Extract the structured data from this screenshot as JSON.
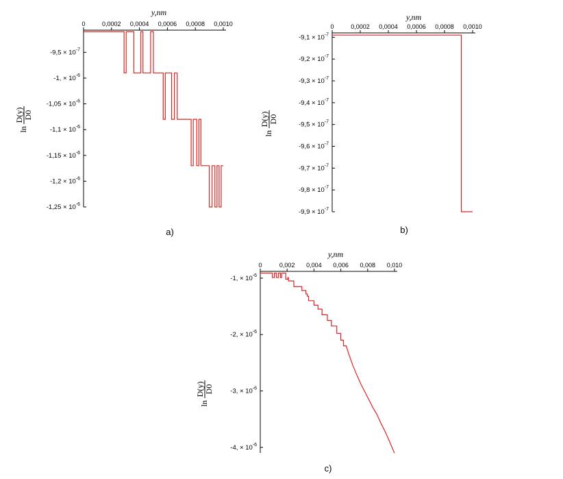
{
  "chart_data": [
    {
      "type": "line",
      "panel_label": "a)",
      "xlabel": "y,nm",
      "ylabel": {
        "prefix": "ln",
        "numerator": "D(y)",
        "denominator": "D0"
      },
      "xlim": [
        0,
        0.001
      ],
      "ylim": [
        -1.25e-06,
        -9.07e-07
      ],
      "x_ticks": [
        {
          "value": 0,
          "label": "0"
        },
        {
          "value": 0.0002,
          "label": "0,0002"
        },
        {
          "value": 0.0004,
          "label": "0,0004"
        },
        {
          "value": 0.0006,
          "label": "0,0006"
        },
        {
          "value": 0.0008,
          "label": "0,0008"
        },
        {
          "value": 0.001,
          "label": "0,0010"
        }
      ],
      "y_ticks": [
        {
          "value": -9.5e-07,
          "mant": "-9,5",
          "exp": "-7"
        },
        {
          "value": -1e-06,
          "mant": "-1,",
          "exp": "-6"
        },
        {
          "value": -1.05e-06,
          "mant": "-1,05",
          "exp": "-6"
        },
        {
          "value": -1.1e-06,
          "mant": "-1,1",
          "exp": "-6"
        },
        {
          "value": -1.15e-06,
          "mant": "-1,15",
          "exp": "-6"
        },
        {
          "value": -1.2e-06,
          "mant": "-1,2",
          "exp": "-6"
        },
        {
          "value": -1.25e-06,
          "mant": "-1,25",
          "exp": "-6"
        }
      ],
      "series": [
        {
          "color": "#dd2222",
          "points": [
            [
              0,
              -9.1e-07
            ],
            [
              0.00029,
              -9.1e-07
            ],
            [
              0.00029,
              -9.9e-07
            ],
            [
              0.000305,
              -9.9e-07
            ],
            [
              0.000305,
              -9.1e-07
            ],
            [
              0.00036,
              -9.1e-07
            ],
            [
              0.00036,
              -9.9e-07
            ],
            [
              0.00041,
              -9.9e-07
            ],
            [
              0.00041,
              -9.1e-07
            ],
            [
              0.000425,
              -9.1e-07
            ],
            [
              0.000425,
              -9.9e-07
            ],
            [
              0.00048,
              -9.9e-07
            ],
            [
              0.00048,
              -9.1e-07
            ],
            [
              0.0005,
              -9.1e-07
            ],
            [
              0.0005,
              -9.9e-07
            ],
            [
              0.00057,
              -9.9e-07
            ],
            [
              0.00057,
              -1.08e-06
            ],
            [
              0.000585,
              -1.08e-06
            ],
            [
              0.000585,
              -9.9e-07
            ],
            [
              0.00063,
              -9.9e-07
            ],
            [
              0.00063,
              -1.08e-06
            ],
            [
              0.00065,
              -1.08e-06
            ],
            [
              0.00065,
              -9.9e-07
            ],
            [
              0.00067,
              -9.9e-07
            ],
            [
              0.00067,
              -1.08e-06
            ],
            [
              0.00077,
              -1.08e-06
            ],
            [
              0.00077,
              -1.17e-06
            ],
            [
              0.000785,
              -1.17e-06
            ],
            [
              0.000785,
              -1.08e-06
            ],
            [
              0.00081,
              -1.08e-06
            ],
            [
              0.00081,
              -1.17e-06
            ],
            [
              0.000825,
              -1.17e-06
            ],
            [
              0.000825,
              -1.08e-06
            ],
            [
              0.00084,
              -1.08e-06
            ],
            [
              0.00084,
              -1.17e-06
            ],
            [
              0.0009,
              -1.17e-06
            ],
            [
              0.0009,
              -1.25e-06
            ],
            [
              0.00092,
              -1.25e-06
            ],
            [
              0.00092,
              -1.17e-06
            ],
            [
              0.00094,
              -1.17e-06
            ],
            [
              0.00094,
              -1.25e-06
            ],
            [
              0.000955,
              -1.25e-06
            ],
            [
              0.000955,
              -1.17e-06
            ],
            [
              0.00097,
              -1.17e-06
            ],
            [
              0.00097,
              -1.25e-06
            ],
            [
              0.000985,
              -1.25e-06
            ],
            [
              0.000985,
              -1.17e-06
            ],
            [
              0.001,
              -1.17e-06
            ]
          ]
        }
      ]
    },
    {
      "type": "line",
      "panel_label": "b)",
      "xlabel": "y,nm",
      "ylabel": {
        "prefix": "ln",
        "numerator": "D(y)",
        "denominator": "D0"
      },
      "xlim": [
        0,
        0.001
      ],
      "ylim": [
        -9.9e-07,
        -9.08e-07
      ],
      "x_ticks": [
        {
          "value": 0,
          "label": "0"
        },
        {
          "value": 0.0002,
          "label": "0,0002"
        },
        {
          "value": 0.0004,
          "label": "0,0004"
        },
        {
          "value": 0.0006,
          "label": "0,0006"
        },
        {
          "value": 0.0008,
          "label": "0,0008"
        },
        {
          "value": 0.001,
          "label": "0,0010"
        }
      ],
      "y_ticks": [
        {
          "value": -9.1e-07,
          "mant": "-9,1",
          "exp": "-7"
        },
        {
          "value": -9.2e-07,
          "mant": "-9,2",
          "exp": "-7"
        },
        {
          "value": -9.3e-07,
          "mant": "-9,3",
          "exp": "-7"
        },
        {
          "value": -9.4e-07,
          "mant": "-9,4",
          "exp": "-7"
        },
        {
          "value": -9.5e-07,
          "mant": "-9,5",
          "exp": "-7"
        },
        {
          "value": -9.6e-07,
          "mant": "-9,6",
          "exp": "-7"
        },
        {
          "value": -9.7e-07,
          "mant": "-9,7",
          "exp": "-7"
        },
        {
          "value": -9.8e-07,
          "mant": "-9,8",
          "exp": "-7"
        },
        {
          "value": -9.9e-07,
          "mant": "-9,9",
          "exp": "-7"
        }
      ],
      "series": [
        {
          "color": "#dd2222",
          "points": [
            [
              0,
              -9.09e-07
            ],
            [
              0.00092,
              -9.09e-07
            ],
            [
              0.00092,
              -9.9e-07
            ],
            [
              0.001,
              -9.9e-07
            ]
          ]
        }
      ]
    },
    {
      "type": "line",
      "panel_label": "c)",
      "xlabel": "y,nm",
      "ylabel": {
        "prefix": "ln",
        "numerator": "D(y)",
        "denominator": "D0"
      },
      "xlim": [
        0,
        0.01
      ],
      "ylim": [
        -4.1e-06,
        -8.8e-07
      ],
      "x_ticks": [
        {
          "value": 0,
          "label": "0"
        },
        {
          "value": 0.002,
          "label": "0,002"
        },
        {
          "value": 0.004,
          "label": "0,004"
        },
        {
          "value": 0.006,
          "label": "0,006"
        },
        {
          "value": 0.008,
          "label": "0,008"
        },
        {
          "value": 0.01,
          "label": "0,010"
        }
      ],
      "y_ticks": [
        {
          "value": -1e-06,
          "mant": "-1,",
          "exp": "-6"
        },
        {
          "value": -2e-06,
          "mant": "-2,",
          "exp": "-6"
        },
        {
          "value": -3e-06,
          "mant": "-3,",
          "exp": "-6"
        },
        {
          "value": -4e-06,
          "mant": "-4,",
          "exp": "-6"
        }
      ],
      "series": [
        {
          "color": "#dd2222",
          "points": [
            [
              0,
              -9.1e-07
            ],
            [
              0.0009,
              -9.1e-07
            ],
            [
              0.0009,
              -9.9e-07
            ],
            [
              0.00105,
              -9.9e-07
            ],
            [
              0.00105,
              -9.1e-07
            ],
            [
              0.0012,
              -9.1e-07
            ],
            [
              0.0012,
              -9.9e-07
            ],
            [
              0.00135,
              -9.9e-07
            ],
            [
              0.00135,
              -9.1e-07
            ],
            [
              0.0015,
              -9.1e-07
            ],
            [
              0.0015,
              -9.9e-07
            ],
            [
              0.0016,
              -9.9e-07
            ],
            [
              0.0016,
              -9.1e-07
            ],
            [
              0.0019,
              -9.1e-07
            ],
            [
              0.0019,
              -1.02e-06
            ],
            [
              0.00205,
              -1.02e-06
            ],
            [
              0.00205,
              -9.9e-07
            ],
            [
              0.0021,
              -9.9e-07
            ],
            [
              0.0021,
              -1.05e-06
            ],
            [
              0.0025,
              -1.05e-06
            ],
            [
              0.0025,
              -1.15e-06
            ],
            [
              0.0031,
              -1.15e-06
            ],
            [
              0.0031,
              -1.22e-06
            ],
            [
              0.0034,
              -1.22e-06
            ],
            [
              0.0034,
              -1.28e-06
            ],
            [
              0.0035,
              -1.28e-06
            ],
            [
              0.0035,
              -1.32e-06
            ],
            [
              0.0036,
              -1.32e-06
            ],
            [
              0.0036,
              -1.4e-06
            ],
            [
              0.004,
              -1.4e-06
            ],
            [
              0.004,
              -1.48e-06
            ],
            [
              0.0043,
              -1.48e-06
            ],
            [
              0.0043,
              -1.55e-06
            ],
            [
              0.0046,
              -1.55e-06
            ],
            [
              0.0046,
              -1.65e-06
            ],
            [
              0.005,
              -1.65e-06
            ],
            [
              0.005,
              -1.75e-06
            ],
            [
              0.0053,
              -1.75e-06
            ],
            [
              0.0053,
              -1.85e-06
            ],
            [
              0.0057,
              -1.85e-06
            ],
            [
              0.0057,
              -1.98e-06
            ],
            [
              0.006,
              -1.98e-06
            ],
            [
              0.006,
              -2.1e-06
            ],
            [
              0.0062,
              -2.1e-06
            ],
            [
              0.0062,
              -2.2e-06
            ],
            [
              0.0064,
              -2.2e-06
            ],
            [
              0.0066,
              -2.35e-06
            ],
            [
              0.0069,
              -2.55e-06
            ],
            [
              0.0072,
              -2.72e-06
            ],
            [
              0.0075,
              -2.88e-06
            ],
            [
              0.0078,
              -3.02e-06
            ],
            [
              0.0081,
              -3.16e-06
            ],
            [
              0.0084,
              -3.3e-06
            ],
            [
              0.0087,
              -3.42e-06
            ],
            [
              0.009,
              -3.58e-06
            ],
            [
              0.0093,
              -3.72e-06
            ],
            [
              0.0096,
              -3.88e-06
            ],
            [
              0.0099,
              -4.05e-06
            ],
            [
              0.01,
              -4.1e-06
            ]
          ]
        }
      ]
    }
  ]
}
